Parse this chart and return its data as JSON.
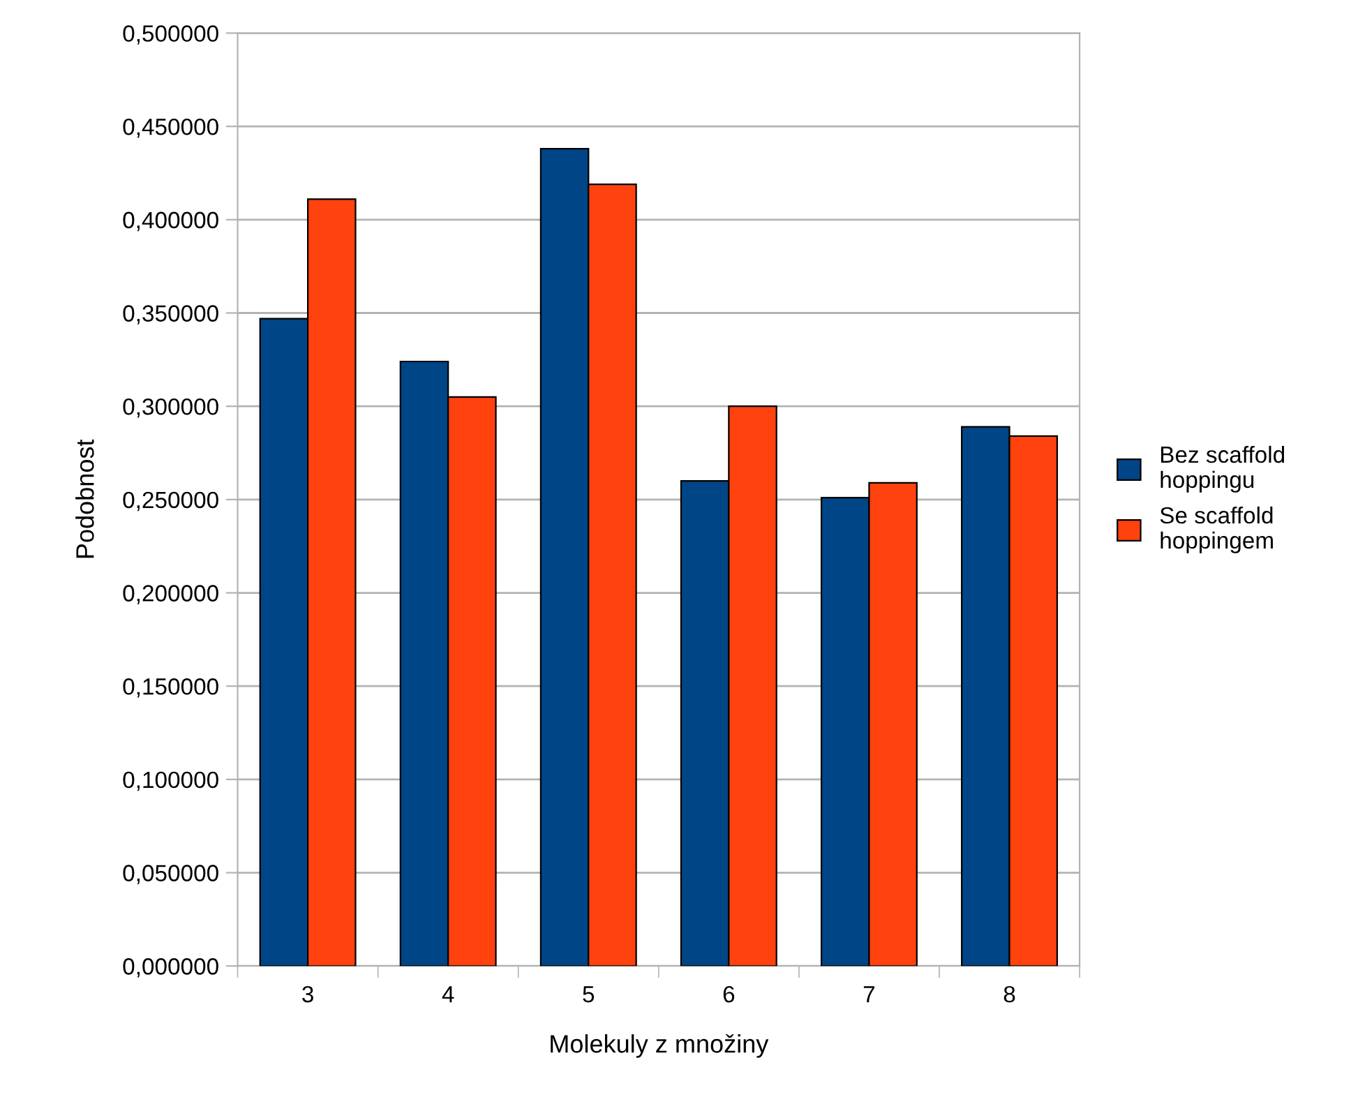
{
  "chart_data": {
    "type": "bar",
    "xlabel": "Molekuly z množiny",
    "ylabel": "Podobnost",
    "categories": [
      "3",
      "4",
      "5",
      "6",
      "7",
      "8"
    ],
    "series": [
      {
        "name": "Bez scaffold\nhoppingu",
        "color": "#004586",
        "values": [
          0.347,
          0.324,
          0.438,
          0.26,
          0.251,
          0.289
        ]
      },
      {
        "name": "Se scaffold\nhoppingem",
        "color": "#ff420e",
        "values": [
          0.411,
          0.305,
          0.419,
          0.3,
          0.259,
          0.284
        ]
      }
    ],
    "ylim": [
      0,
      0.5
    ],
    "yticks": [
      {
        "value": 0,
        "label": "0,000000"
      },
      {
        "value": 0.05,
        "label": "0,050000"
      },
      {
        "value": 0.1,
        "label": "0,100000"
      },
      {
        "value": 0.15,
        "label": "0,150000"
      },
      {
        "value": 0.2,
        "label": "0,200000"
      },
      {
        "value": 0.25,
        "label": "0,250000"
      },
      {
        "value": 0.3,
        "label": "0,300000"
      },
      {
        "value": 0.35,
        "label": "0,350000"
      },
      {
        "value": 0.4,
        "label": "0,400000"
      },
      {
        "value": 0.45,
        "label": "0,450000"
      },
      {
        "value": 0.5,
        "label": "0,500000"
      }
    ],
    "grid": "y",
    "legend": "right"
  }
}
